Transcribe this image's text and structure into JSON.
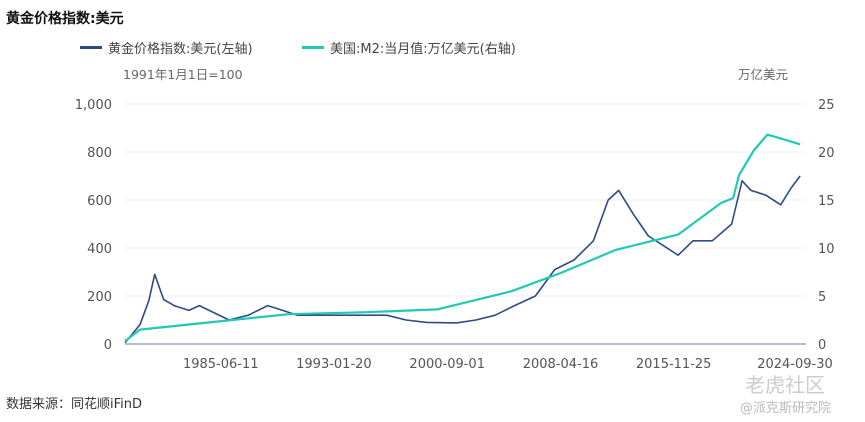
{
  "chart_data": {
    "type": "line",
    "title": "黄金价格指数:美元",
    "left_axis_note": "1991年1月1日=100",
    "right_axis_note": "万亿美元",
    "ylim_left": [
      0,
      1000
    ],
    "ylim_right": [
      0,
      25
    ],
    "left_ticks": [
      "0",
      "200",
      "400",
      "600",
      "800",
      "1,000"
    ],
    "right_ticks": [
      "0",
      "5",
      "10",
      "15",
      "20",
      "25"
    ],
    "x_ticks": [
      {
        "year": 1985.44,
        "label": "1985-06-11"
      },
      {
        "year": 1993.05,
        "label": "1993-01-20"
      },
      {
        "year": 2000.67,
        "label": "2000-09-01"
      },
      {
        "year": 2008.29,
        "label": "2008-04-16"
      },
      {
        "year": 2015.9,
        "label": "2015-11-25"
      },
      {
        "year": 2024.75,
        "label": "2024-09-30"
      }
    ],
    "xlim": [
      1979,
      2024.8
    ],
    "series": [
      {
        "name": "黄金价格指数:美元(左轴)",
        "axis": "left",
        "color": "#2e4a87",
        "points": [
          [
            1979,
            5
          ],
          [
            1980,
            80
          ],
          [
            1980.6,
            180
          ],
          [
            1981,
            290
          ],
          [
            1981.6,
            185
          ],
          [
            1982.3,
            160
          ],
          [
            1983.3,
            140
          ],
          [
            1984,
            160
          ],
          [
            1986,
            100
          ],
          [
            1987.3,
            120
          ],
          [
            1988.6,
            160
          ],
          [
            1989.6,
            140
          ],
          [
            1990.6,
            120
          ],
          [
            1992.6,
            120
          ],
          [
            1994.6,
            120
          ],
          [
            1996.6,
            120
          ],
          [
            1997.9,
            100
          ],
          [
            1999.3,
            90
          ],
          [
            2001.3,
            88
          ],
          [
            2002.6,
            100
          ],
          [
            2003.9,
            120
          ],
          [
            2005.2,
            160
          ],
          [
            2006.6,
            200
          ],
          [
            2007.9,
            310
          ],
          [
            2009.2,
            350
          ],
          [
            2010.5,
            430
          ],
          [
            2011.5,
            600
          ],
          [
            2012.2,
            640
          ],
          [
            2013.2,
            540
          ],
          [
            2014.2,
            450
          ],
          [
            2015.2,
            410
          ],
          [
            2016.2,
            370
          ],
          [
            2017.2,
            430
          ],
          [
            2018.5,
            430
          ],
          [
            2019.8,
            500
          ],
          [
            2020.5,
            680
          ],
          [
            2021.1,
            640
          ],
          [
            2022.1,
            620
          ],
          [
            2023.1,
            580
          ],
          [
            2023.8,
            650
          ],
          [
            2024.4,
            700
          ]
        ]
      },
      {
        "name": "美国:M2:当月值:万亿美元(右轴)",
        "axis": "right",
        "color": "#1fc9b5",
        "points": [
          [
            1979,
            0.3
          ],
          [
            1980,
            1.5
          ],
          [
            1985,
            2.3
          ],
          [
            1990,
            3.1
          ],
          [
            1995,
            3.3
          ],
          [
            2000,
            3.6
          ],
          [
            2005,
            5.5
          ],
          [
            2008.3,
            7.4
          ],
          [
            2012,
            9.8
          ],
          [
            2016.2,
            11.4
          ],
          [
            2019.1,
            14.7
          ],
          [
            2019.9,
            15.2
          ],
          [
            2020.3,
            17.6
          ],
          [
            2021.3,
            20.2
          ],
          [
            2022.2,
            21.8
          ],
          [
            2022.9,
            21.5
          ],
          [
            2024.4,
            20.8
          ]
        ]
      }
    ]
  },
  "source": "数据来源：同花顺iFinD",
  "watermark": "老虎社区",
  "watermark2": "@派克斯研究院"
}
